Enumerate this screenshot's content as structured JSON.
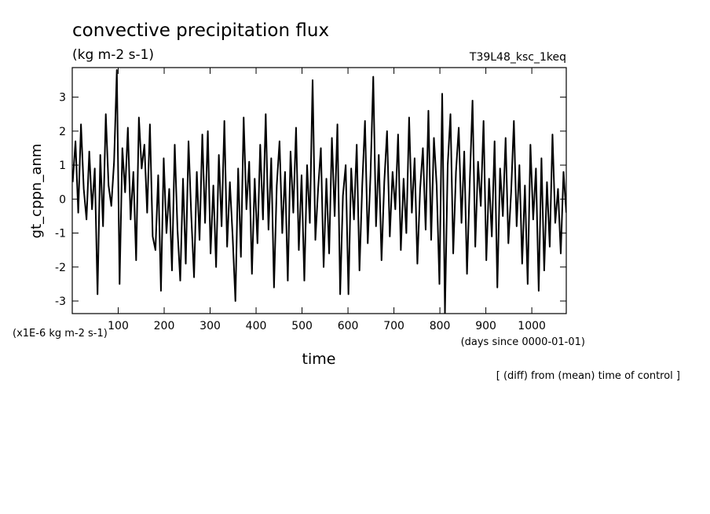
{
  "chart_data": {
    "type": "line",
    "title": "convective precipitation flux",
    "subtitle": "(kg m-2 s-1)",
    "run_label": "T39L48_ksc_1keq",
    "y_label": "gt_cppn_anm",
    "x_label": "time",
    "y_unit_note": "(x1E-6 kg m-2 s-1)",
    "x_unit_note": "(days since 0000-01-01)",
    "footnote": "[ (diff) from (mean) time of control ]",
    "color": "#000000",
    "xlim": [
      0,
      1075
    ],
    "ylim": [
      -3.37,
      3.87
    ],
    "xticks": [
      100,
      200,
      300,
      400,
      500,
      600,
      700,
      800,
      900,
      1000
    ],
    "yticks": [
      -3,
      -2,
      -1,
      0,
      1,
      2,
      3
    ],
    "x": [
      1,
      7,
      13,
      19,
      25,
      31,
      37,
      43,
      49,
      55,
      61,
      67,
      73,
      79,
      85,
      91,
      97,
      103,
      109,
      115,
      121,
      127,
      133,
      139,
      145,
      151,
      157,
      163,
      169,
      175,
      181,
      187,
      193,
      199,
      205,
      211,
      217,
      223,
      229,
      235,
      241,
      247,
      253,
      259,
      265,
      271,
      277,
      283,
      289,
      295,
      301,
      307,
      313,
      319,
      325,
      331,
      337,
      343,
      349,
      355,
      361,
      367,
      373,
      379,
      385,
      391,
      397,
      403,
      409,
      415,
      421,
      427,
      433,
      439,
      445,
      451,
      457,
      463,
      469,
      475,
      481,
      487,
      493,
      499,
      505,
      511,
      517,
      523,
      529,
      535,
      541,
      547,
      553,
      559,
      565,
      571,
      577,
      583,
      589,
      595,
      601,
      607,
      613,
      619,
      625,
      631,
      637,
      643,
      649,
      655,
      661,
      667,
      673,
      679,
      685,
      691,
      697,
      703,
      709,
      715,
      721,
      727,
      733,
      739,
      745,
      751,
      757,
      763,
      769,
      775,
      781,
      787,
      793,
      799,
      805,
      811,
      817,
      823,
      829,
      835,
      841,
      847,
      853,
      859,
      865,
      871,
      877,
      883,
      889,
      895,
      901,
      907,
      913,
      919,
      925,
      931,
      937,
      943,
      949,
      955,
      961,
      967,
      973,
      979,
      985,
      991,
      997,
      1003,
      1009,
      1015,
      1021,
      1027,
      1033,
      1039,
      1045,
      1051,
      1057,
      1063,
      1069,
      1075
    ],
    "values": [
      0.5,
      1.7,
      -0.4,
      2.2,
      0.3,
      -0.6,
      1.4,
      -0.3,
      0.9,
      -2.8,
      1.3,
      -0.8,
      2.5,
      0.4,
      -0.2,
      1.1,
      3.8,
      -2.5,
      1.5,
      0.2,
      2.1,
      -0.6,
      0.8,
      -1.8,
      2.4,
      0.9,
      1.6,
      -0.4,
      2.2,
      -1.1,
      -1.5,
      0.7,
      -2.7,
      1.2,
      -1.0,
      0.3,
      -2.1,
      1.6,
      -0.9,
      -2.4,
      0.6,
      -1.9,
      1.7,
      -0.5,
      -2.3,
      0.8,
      -1.2,
      1.9,
      -0.7,
      2.0,
      -1.6,
      0.4,
      -2.0,
      1.3,
      -0.8,
      2.3,
      -1.4,
      0.5,
      -1.1,
      -3.0,
      0.9,
      -1.7,
      2.4,
      -0.3,
      1.1,
      -2.2,
      0.6,
      -1.3,
      1.6,
      -0.6,
      2.5,
      -0.9,
      1.2,
      -2.6,
      0.4,
      1.7,
      -1.0,
      0.8,
      -2.4,
      1.4,
      -0.4,
      2.1,
      -1.5,
      0.7,
      -2.4,
      1.0,
      -0.7,
      3.5,
      -1.2,
      0.3,
      1.5,
      -2.0,
      0.6,
      -1.6,
      1.8,
      -0.5,
      2.2,
      -2.8,
      0.1,
      1.0,
      -2.8,
      0.9,
      -0.6,
      1.6,
      -2.1,
      0.4,
      2.3,
      -1.3,
      0.7,
      3.6,
      -0.8,
      1.3,
      -1.8,
      0.5,
      2.0,
      -1.1,
      0.8,
      -0.3,
      1.9,
      -1.5,
      0.6,
      -1.0,
      2.4,
      -0.4,
      1.2,
      -1.9,
      0.3,
      1.5,
      -0.9,
      2.6,
      -1.2,
      1.8,
      0.4,
      -2.5,
      3.1,
      -3.35,
      1.0,
      2.5,
      -1.6,
      0.8,
      2.1,
      -0.7,
      1.4,
      -2.2,
      0.5,
      2.9,
      -1.4,
      1.1,
      -0.2,
      2.3,
      -1.8,
      0.6,
      -1.1,
      1.7,
      -2.6,
      0.9,
      -0.5,
      1.8,
      -1.3,
      0.2,
      2.3,
      -0.8,
      1.0,
      -1.9,
      0.4,
      -2.5,
      1.6,
      -0.6,
      0.9,
      -2.7,
      1.2,
      -2.1,
      0.5,
      -1.4,
      1.9,
      -0.7,
      0.3,
      -1.6,
      0.8,
      -0.4
    ]
  }
}
